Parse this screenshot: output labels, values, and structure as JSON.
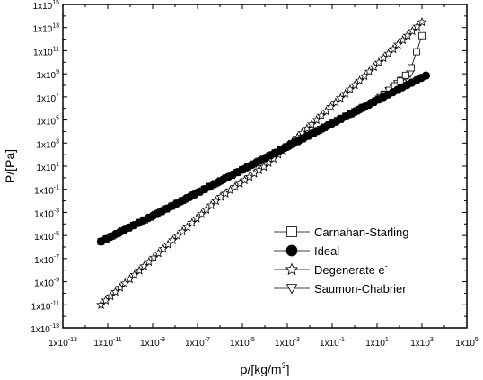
{
  "chart_data": {
    "type": "scatter",
    "xscale": "log",
    "yscale": "log",
    "xlim": [
      1e-13,
      100000.0
    ],
    "ylim": [
      1e-13,
      1000000000000000.0
    ],
    "x_tick_exponents": [
      -13,
      -11,
      -9,
      -7,
      -5,
      -3,
      -1,
      1,
      3,
      5
    ],
    "y_tick_exponents": [
      -13,
      -11,
      -9,
      -7,
      -5,
      -3,
      -1,
      1,
      3,
      5,
      7,
      9,
      11,
      13,
      15
    ],
    "tick_base": "1x10",
    "xlabel": {
      "symbol": "ρ",
      "unit": "/[kg/m",
      "sup": "3",
      "close": "]"
    },
    "ylabel": "P/[Pa]",
    "legend_position": "lower-right",
    "series": [
      {
        "name": "Carnahan-Starling",
        "marker": "square-open",
        "points": [
          [
            5e-12,
            3e-06
          ],
          [
            1e-09,
            0.0005
          ],
          [
            1e-06,
            0.5
          ],
          [
            0.001,
            500.0
          ],
          [
            1,
            500000.0
          ],
          [
            10,
            5000000.0
          ],
          [
            100,
            200000000.0
          ],
          [
            300,
            2000000000.0
          ],
          [
            1000,
            2000000000000.0
          ]
        ]
      },
      {
        "name": "Ideal",
        "marker": "circle-filled",
        "points": [
          [
            5e-12,
            3e-06
          ],
          [
            1e-09,
            0.0005
          ],
          [
            1e-06,
            0.5
          ],
          [
            0.001,
            500.0
          ],
          [
            1,
            500000.0
          ],
          [
            100,
            50000000.0
          ],
          [
            1500,
            700000000.0
          ]
        ]
      },
      {
        "name": "Degenerate e",
        "name_sup": "-",
        "marker": "star-open",
        "points": [
          [
            5e-12,
            1e-11
          ],
          [
            1e-09,
            1e-07
          ],
          [
            1e-06,
            0.02
          ],
          [
            0.0001,
            10.0
          ],
          [
            0.001,
            500.0
          ],
          [
            1,
            100000000.0
          ],
          [
            1000,
            30000000000000.0
          ]
        ]
      },
      {
        "name": "Saumon-Chabrier",
        "marker": "triangle-down-open",
        "points": [
          [
            0.001,
            500.0
          ],
          [
            0.01,
            5000.0
          ],
          [
            0.1,
            50000.0
          ],
          [
            1,
            500000.0
          ],
          [
            10,
            5000000.0
          ],
          [
            100,
            200000000.0
          ],
          [
            300,
            1000000000.0
          ]
        ]
      }
    ]
  }
}
